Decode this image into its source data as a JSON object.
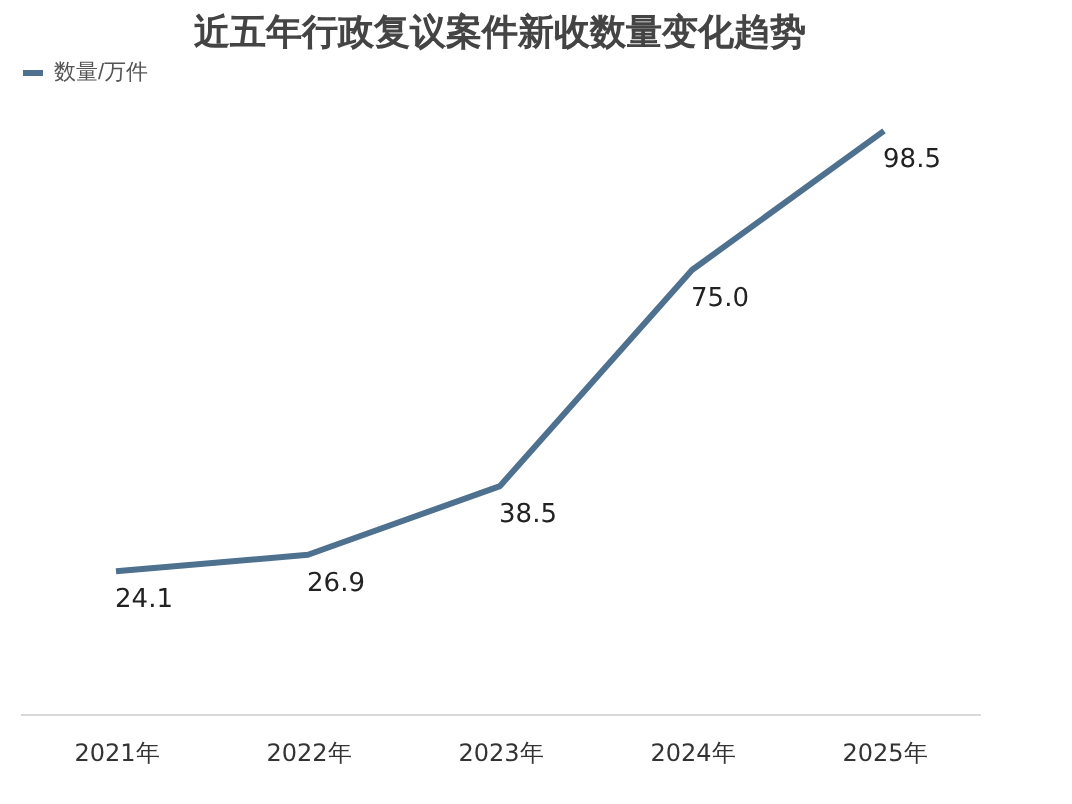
{
  "chart_data": {
    "type": "line",
    "title": "近五年行政复议案件新收数量变化趋势",
    "categories": [
      "2021年",
      "2022年",
      "2023年",
      "2024年",
      "2025年"
    ],
    "series": [
      {
        "name": "数量/万件",
        "color": "#4e7190",
        "values": [
          24.1,
          26.9,
          38.5,
          75.0,
          98.5
        ],
        "value_labels": [
          "24.1",
          "26.9",
          "38.5",
          "75.0",
          "98.5"
        ]
      }
    ],
    "grid": false,
    "legend": "top",
    "tick_labels": "x",
    "marker": "none",
    "line_style": "solid"
  }
}
